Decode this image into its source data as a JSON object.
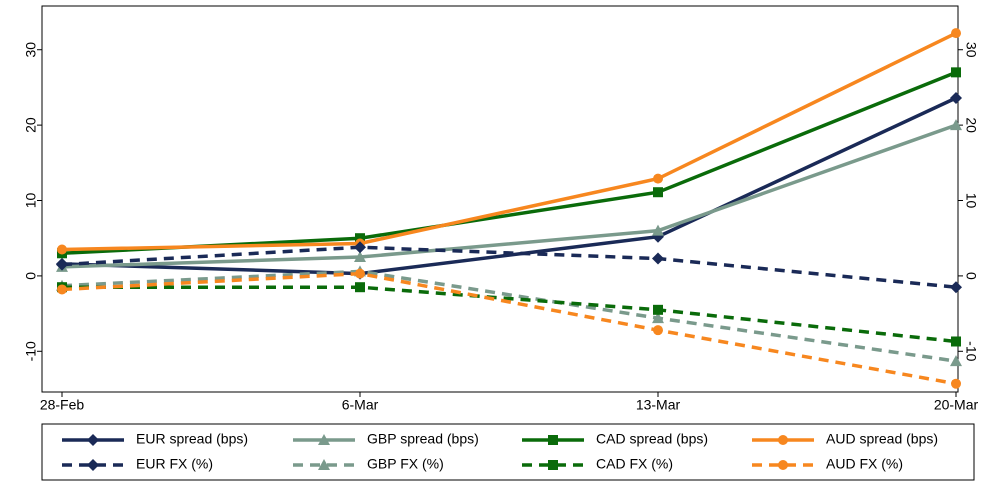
{
  "chart_data": {
    "type": "line",
    "categories": [
      "28-Feb",
      "6-Mar",
      "13-Mar",
      "20-Mar"
    ],
    "ylim": [
      -15.4,
      35.8
    ],
    "yticks": [
      -10,
      0,
      10,
      20,
      30
    ],
    "series": [
      {
        "name": "EUR spread (bps)",
        "color": "#1a2a57",
        "marker": "diamond",
        "style": "solid",
        "values": [
          1.6,
          0.3,
          5.2,
          23.6
        ]
      },
      {
        "name": "GBP spread (bps)",
        "color": "#7a9a8c",
        "marker": "triangle",
        "style": "solid",
        "values": [
          1.2,
          2.5,
          6.0,
          20.0
        ]
      },
      {
        "name": "CAD spread (bps)",
        "color": "#0a6b0a",
        "marker": "square",
        "style": "solid",
        "values": [
          3.0,
          5.0,
          11.1,
          27.0
        ]
      },
      {
        "name": "AUD spread (bps)",
        "color": "#f7871f",
        "marker": "circle",
        "style": "solid",
        "values": [
          3.5,
          4.3,
          12.9,
          32.2
        ]
      },
      {
        "name": "EUR FX (%)",
        "color": "#1a2a57",
        "marker": "diamond",
        "style": "dashed",
        "values": [
          1.5,
          3.8,
          2.3,
          -1.5
        ]
      },
      {
        "name": "GBP FX (%)",
        "color": "#7a9a8c",
        "marker": "triangle",
        "style": "dashed",
        "values": [
          -1.3,
          0.6,
          -5.6,
          -11.3
        ]
      },
      {
        "name": "CAD FX (%)",
        "color": "#0a6b0a",
        "marker": "square",
        "style": "dashed",
        "values": [
          -1.5,
          -1.5,
          -4.5,
          -8.7
        ]
      },
      {
        "name": "AUD FX (%)",
        "color": "#f7871f",
        "marker": "circle",
        "style": "dashed",
        "values": [
          -1.8,
          0.3,
          -7.2,
          -14.3
        ]
      }
    ]
  }
}
